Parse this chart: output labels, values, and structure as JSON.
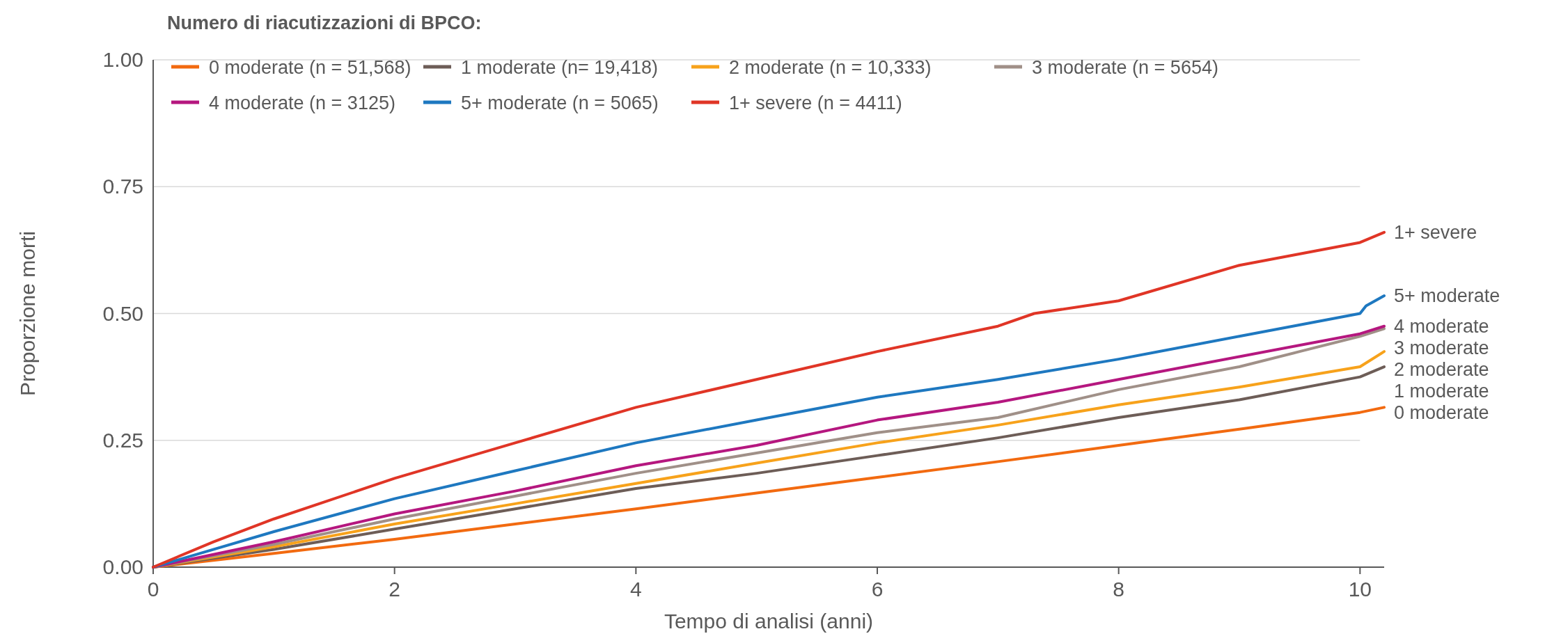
{
  "chart_data": {
    "type": "line",
    "xlabel": "Tempo di analisi (anni)",
    "ylabel": "Proporzione morti",
    "legend_title": "Numero di riacutizzazioni di BPCO:",
    "legend": "top",
    "grid": "y",
    "line_style": "solid",
    "marker": "none",
    "xlim": [
      0,
      10.2
    ],
    "xticks": [
      0,
      2,
      4,
      6,
      8,
      10
    ],
    "ylim": [
      0,
      1
    ],
    "yticks": [
      {
        "value": 0,
        "label": "0.00"
      },
      {
        "value": 0.25,
        "label": "0.25"
      },
      {
        "value": 0.5,
        "label": "0.50"
      },
      {
        "value": 0.75,
        "label": "0.75"
      },
      {
        "value": 1,
        "label": "1.00"
      }
    ],
    "series": [
      {
        "name": "0 moderate (n = 51,568)",
        "color": "#f26a10",
        "x": [
          0,
          1,
          2,
          3,
          4,
          5,
          6,
          7,
          8,
          9,
          10,
          10.2
        ],
        "values": [
          0,
          0.027,
          0.055,
          0.085,
          0.115,
          0.146,
          0.177,
          0.208,
          0.24,
          0.272,
          0.305,
          0.315
        ]
      },
      {
        "name": "1 moderate (n= 19,418)",
        "color": "#6d5d57",
        "x": [
          0,
          1,
          2,
          3,
          4,
          5,
          6,
          7,
          8,
          9,
          10,
          10.2
        ],
        "values": [
          0,
          0.035,
          0.075,
          0.115,
          0.155,
          0.185,
          0.22,
          0.255,
          0.295,
          0.33,
          0.375,
          0.395
        ]
      },
      {
        "name": "2 moderate (n = 10,333)",
        "color": "#f7a21b",
        "x": [
          0,
          1,
          2,
          3,
          4,
          5,
          6,
          7,
          8,
          9,
          10,
          10.2
        ],
        "values": [
          0,
          0.04,
          0.085,
          0.125,
          0.165,
          0.205,
          0.245,
          0.28,
          0.32,
          0.355,
          0.395,
          0.425
        ]
      },
      {
        "name": "3 moderate (n = 5654)",
        "color": "#a09088",
        "x": [
          0,
          1,
          2,
          3,
          4,
          5,
          6,
          7,
          8,
          9,
          9.5,
          10,
          10.2
        ],
        "values": [
          0,
          0.045,
          0.095,
          0.14,
          0.185,
          0.225,
          0.265,
          0.295,
          0.35,
          0.395,
          0.425,
          0.455,
          0.47
        ]
      },
      {
        "name": "4 moderate (n = 3125)",
        "color": "#b5177f",
        "x": [
          0,
          1,
          2,
          3,
          4,
          5,
          6,
          7,
          8,
          9,
          10,
          10.2
        ],
        "values": [
          0,
          0.05,
          0.105,
          0.15,
          0.2,
          0.24,
          0.29,
          0.325,
          0.37,
          0.415,
          0.46,
          0.475
        ]
      },
      {
        "name": "5+ moderate (n = 5065)",
        "color": "#1e78c0",
        "x": [
          0,
          1,
          2,
          3,
          4,
          5,
          6,
          7,
          8,
          9,
          10,
          10.05,
          10.2
        ],
        "values": [
          0,
          0.07,
          0.135,
          0.19,
          0.245,
          0.29,
          0.335,
          0.37,
          0.41,
          0.455,
          0.5,
          0.515,
          0.535
        ]
      },
      {
        "name": "1+ severe (n = 4411)",
        "color": "#e03526",
        "x": [
          0,
          0.5,
          1,
          2,
          3,
          4,
          5,
          6,
          7,
          7.3,
          8,
          9,
          10,
          10.2
        ],
        "values": [
          0,
          0.05,
          0.095,
          0.175,
          0.245,
          0.315,
          0.37,
          0.425,
          0.475,
          0.5,
          0.525,
          0.595,
          0.64,
          0.66
        ]
      }
    ],
    "annotations": [
      "0 moderate",
      "1 moderate",
      "2 moderate",
      "3 moderate",
      "4 moderate",
      "5+ moderate",
      "1+ severe"
    ]
  }
}
